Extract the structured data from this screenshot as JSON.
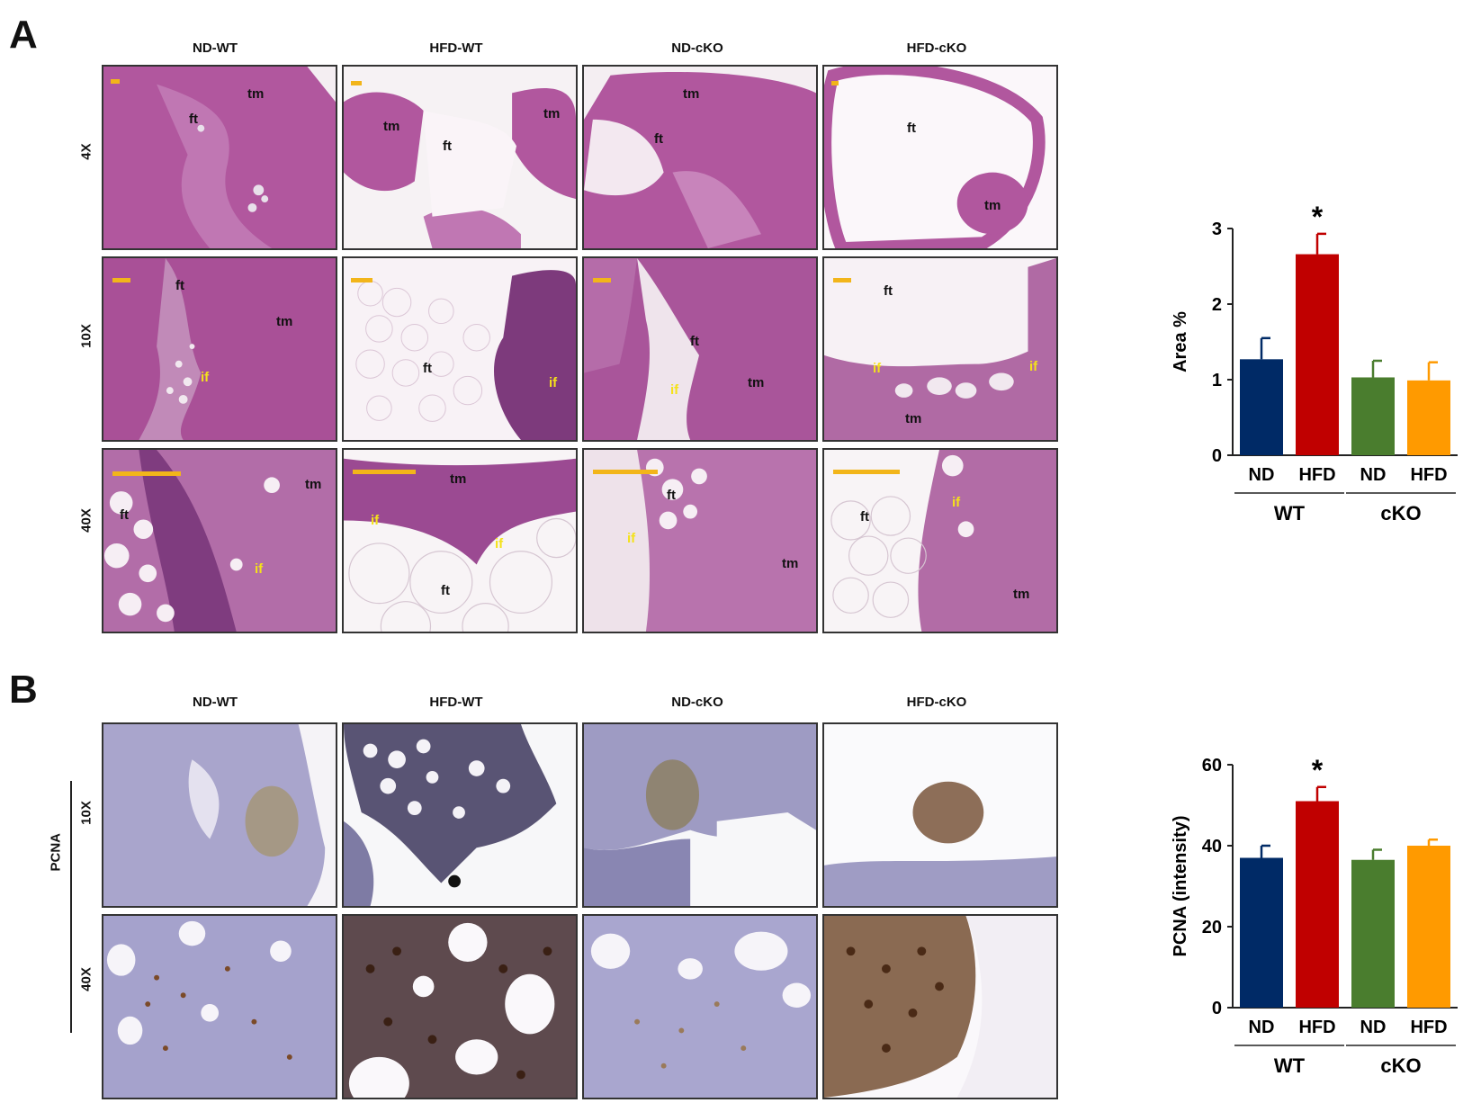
{
  "panels": {
    "A": {
      "letter": "A",
      "columns": [
        "ND-WT",
        "HFD-WT",
        "ND-cKO",
        "HFD-cKO"
      ],
      "rows": [
        "4X",
        "10X",
        "40X"
      ],
      "tissue_labels": [
        "tm",
        "ft",
        "if"
      ]
    },
    "B": {
      "letter": "B",
      "columns": [
        "ND-WT",
        "HFD-WT",
        "ND-cKO",
        "HFD-cKO"
      ],
      "rows": [
        "10X",
        "40X"
      ],
      "stain": "PCNA"
    }
  },
  "chart_data": [
    {
      "type": "bar",
      "categories": [
        "ND",
        "HFD",
        "ND",
        "HFD"
      ],
      "groups": [
        {
          "label": "WT",
          "members": [
            0,
            1
          ]
        },
        {
          "label": "cKO",
          "members": [
            2,
            3
          ]
        }
      ],
      "values": [
        1.27,
        2.66,
        1.03,
        0.99
      ],
      "errors": [
        0.28,
        0.27,
        0.22,
        0.24
      ],
      "significance": [
        "",
        "*",
        "",
        ""
      ],
      "colors": [
        "#002a66",
        "#c00000",
        "#4a7d2e",
        "#ff9a00"
      ],
      "ylabel": "Area %",
      "yticks": [
        0,
        1,
        2,
        3
      ],
      "ylim": [
        0,
        3
      ]
    },
    {
      "type": "bar",
      "categories": [
        "ND",
        "HFD",
        "ND",
        "HFD"
      ],
      "groups": [
        {
          "label": "WT",
          "members": [
            0,
            1
          ]
        },
        {
          "label": "cKO",
          "members": [
            2,
            3
          ]
        }
      ],
      "values": [
        37,
        51,
        36.5,
        40
      ],
      "errors": [
        3,
        3.5,
        2.5,
        1.5
      ],
      "significance": [
        "",
        "*",
        "",
        ""
      ],
      "colors": [
        "#002a66",
        "#c00000",
        "#4a7d2e",
        "#ff9a00"
      ],
      "ylabel": "PCNA (intensity)",
      "yticks": [
        0,
        20,
        40,
        60
      ],
      "ylim": [
        0,
        60
      ]
    }
  ]
}
